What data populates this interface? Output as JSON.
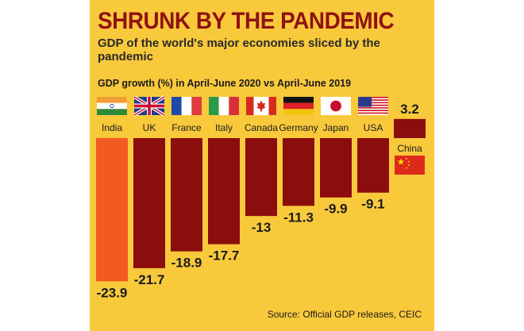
{
  "header": {
    "title": "SHRUNK BY THE PANDEMIC",
    "subtitle": "GDP of the world's major economies sliced by the pandemic"
  },
  "chart_data": {
    "type": "bar",
    "title": "GDP growth (%) in April-June 2020 vs April-June 2019",
    "categories": [
      "India",
      "UK",
      "France",
      "Italy",
      "Canada",
      "Germany",
      "Japan",
      "USA",
      "China"
    ],
    "values": [
      -23.9,
      -21.7,
      -18.9,
      -17.7,
      -13,
      -11.3,
      -9.9,
      -9.1,
      3.2
    ],
    "value_labels": [
      "-23.9",
      "-21.7",
      "-18.9",
      "-17.7",
      "-13",
      "-11.3",
      "-9.9",
      "-9.1",
      "3.2"
    ],
    "highlight_color": "#f25a1f",
    "bar_color": "#8b0d0d",
    "flag_icons": [
      "india-flag-icon",
      "uk-flag-icon",
      "france-flag-icon",
      "italy-flag-icon",
      "canada-flag-icon",
      "germany-flag-icon",
      "japan-flag-icon",
      "usa-flag-icon",
      "china-flag-icon"
    ],
    "grid": false,
    "legend": "none"
  },
  "footer": {
    "source": "Source: Official GDP releases, CEIC"
  },
  "colors": {
    "background": "#f9c93c",
    "title": "#8f1111"
  }
}
